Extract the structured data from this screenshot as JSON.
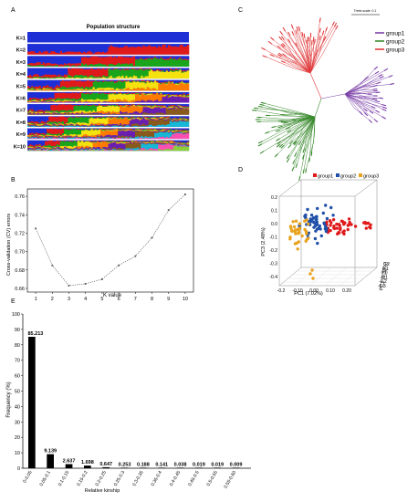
{
  "panels": {
    "A": "A",
    "B": "B",
    "C": "C",
    "D": "D",
    "E": "E"
  },
  "colors": {
    "group1": "#7b3fa8",
    "group2": "#3a8a2e",
    "group3": "#e0393b",
    "pca_group1": "#e01a1a",
    "pca_group2": "#1f4fa8",
    "pca_group3": "#e8a21c",
    "admixture": [
      "#1f2fd6",
      "#e01a1a",
      "#1aa61a",
      "#f5e20f",
      "#ff7b00",
      "#6b1fb0",
      "#8a5a1a",
      "#17b8d6",
      "#ff4fb0",
      "#8ccf3a"
    ]
  },
  "chart_data": [
    {
      "panel": "A",
      "type": "heatmap",
      "title": "Population structure",
      "rows": [
        "K=1",
        "K=2",
        "K=3",
        "K=4",
        "K=5",
        "K=6",
        "K=7",
        "K=8",
        "K=9",
        "K=10"
      ]
    },
    {
      "panel": "B",
      "type": "line",
      "xlabel": "K value",
      "ylabel": "Cross-validation (CV) errors",
      "x": [
        1,
        2,
        3,
        4,
        5,
        6,
        7,
        8,
        9,
        10
      ],
      "y": [
        0.725,
        0.685,
        0.663,
        0.665,
        0.67,
        0.685,
        0.695,
        0.715,
        0.745,
        0.762
      ],
      "xticks": [
        1,
        2,
        3,
        4,
        5,
        6,
        7,
        8,
        9,
        10
      ],
      "yticks": [
        0.66,
        0.68,
        0.7,
        0.72,
        0.74,
        0.76
      ],
      "xlim": [
        0.5,
        10.5
      ],
      "ylim": [
        0.656,
        0.768
      ]
    },
    {
      "panel": "C",
      "type": "scatter",
      "scale_label": "Trees scale: 0.1",
      "legend": [
        "group1",
        "group2",
        "group3"
      ]
    },
    {
      "panel": "D",
      "type": "scatter",
      "legend": [
        "group1",
        "group2",
        "group3"
      ],
      "xlabel": "PC1 (7.02%)",
      "ylabel": "PC3 (2.48%)",
      "zlabel": "PC2 (5.38%)",
      "xticks": [
        "-0.2",
        "-0.10",
        "0.00",
        "0.10",
        "0.20"
      ],
      "yticks": [
        "-0.4",
        "-0.3",
        "-0.2",
        "-0.1",
        "0.0",
        "0.1",
        "0.2"
      ],
      "zticks": [
        "-0.3",
        "-0.2",
        "-0.1",
        "0.0",
        "0.1",
        "0.2"
      ]
    },
    {
      "panel": "E",
      "type": "bar",
      "xlabel": "Relative kinship",
      "ylabel": "Frequency (%)",
      "categories": [
        "0-0.05",
        "0.05-0.1",
        "0.1-0.15",
        "0.15-0.2",
        "0.2-0.25",
        "0.25-0.3",
        "0.3-0.35",
        "0.35-0.4",
        "0.4-0.45",
        "0.45-0.5",
        "0.5-0.55",
        "0.55-0.60"
      ],
      "values": [
        85.213,
        9.139,
        2.637,
        1.698,
        0.647,
        0.253,
        0.188,
        0.141,
        0.038,
        0.019,
        0.019,
        0.009
      ],
      "labels": [
        "85.213",
        "9.139",
        "2.637",
        "1.698",
        "0.647",
        "0.253",
        "0.188",
        "0.141",
        "0.038",
        "0.019",
        "0.019",
        "0.009"
      ],
      "yticks": [
        0,
        10,
        20,
        30,
        40,
        50,
        60,
        70,
        80,
        90,
        100
      ],
      "ylim": [
        0,
        100
      ]
    }
  ]
}
